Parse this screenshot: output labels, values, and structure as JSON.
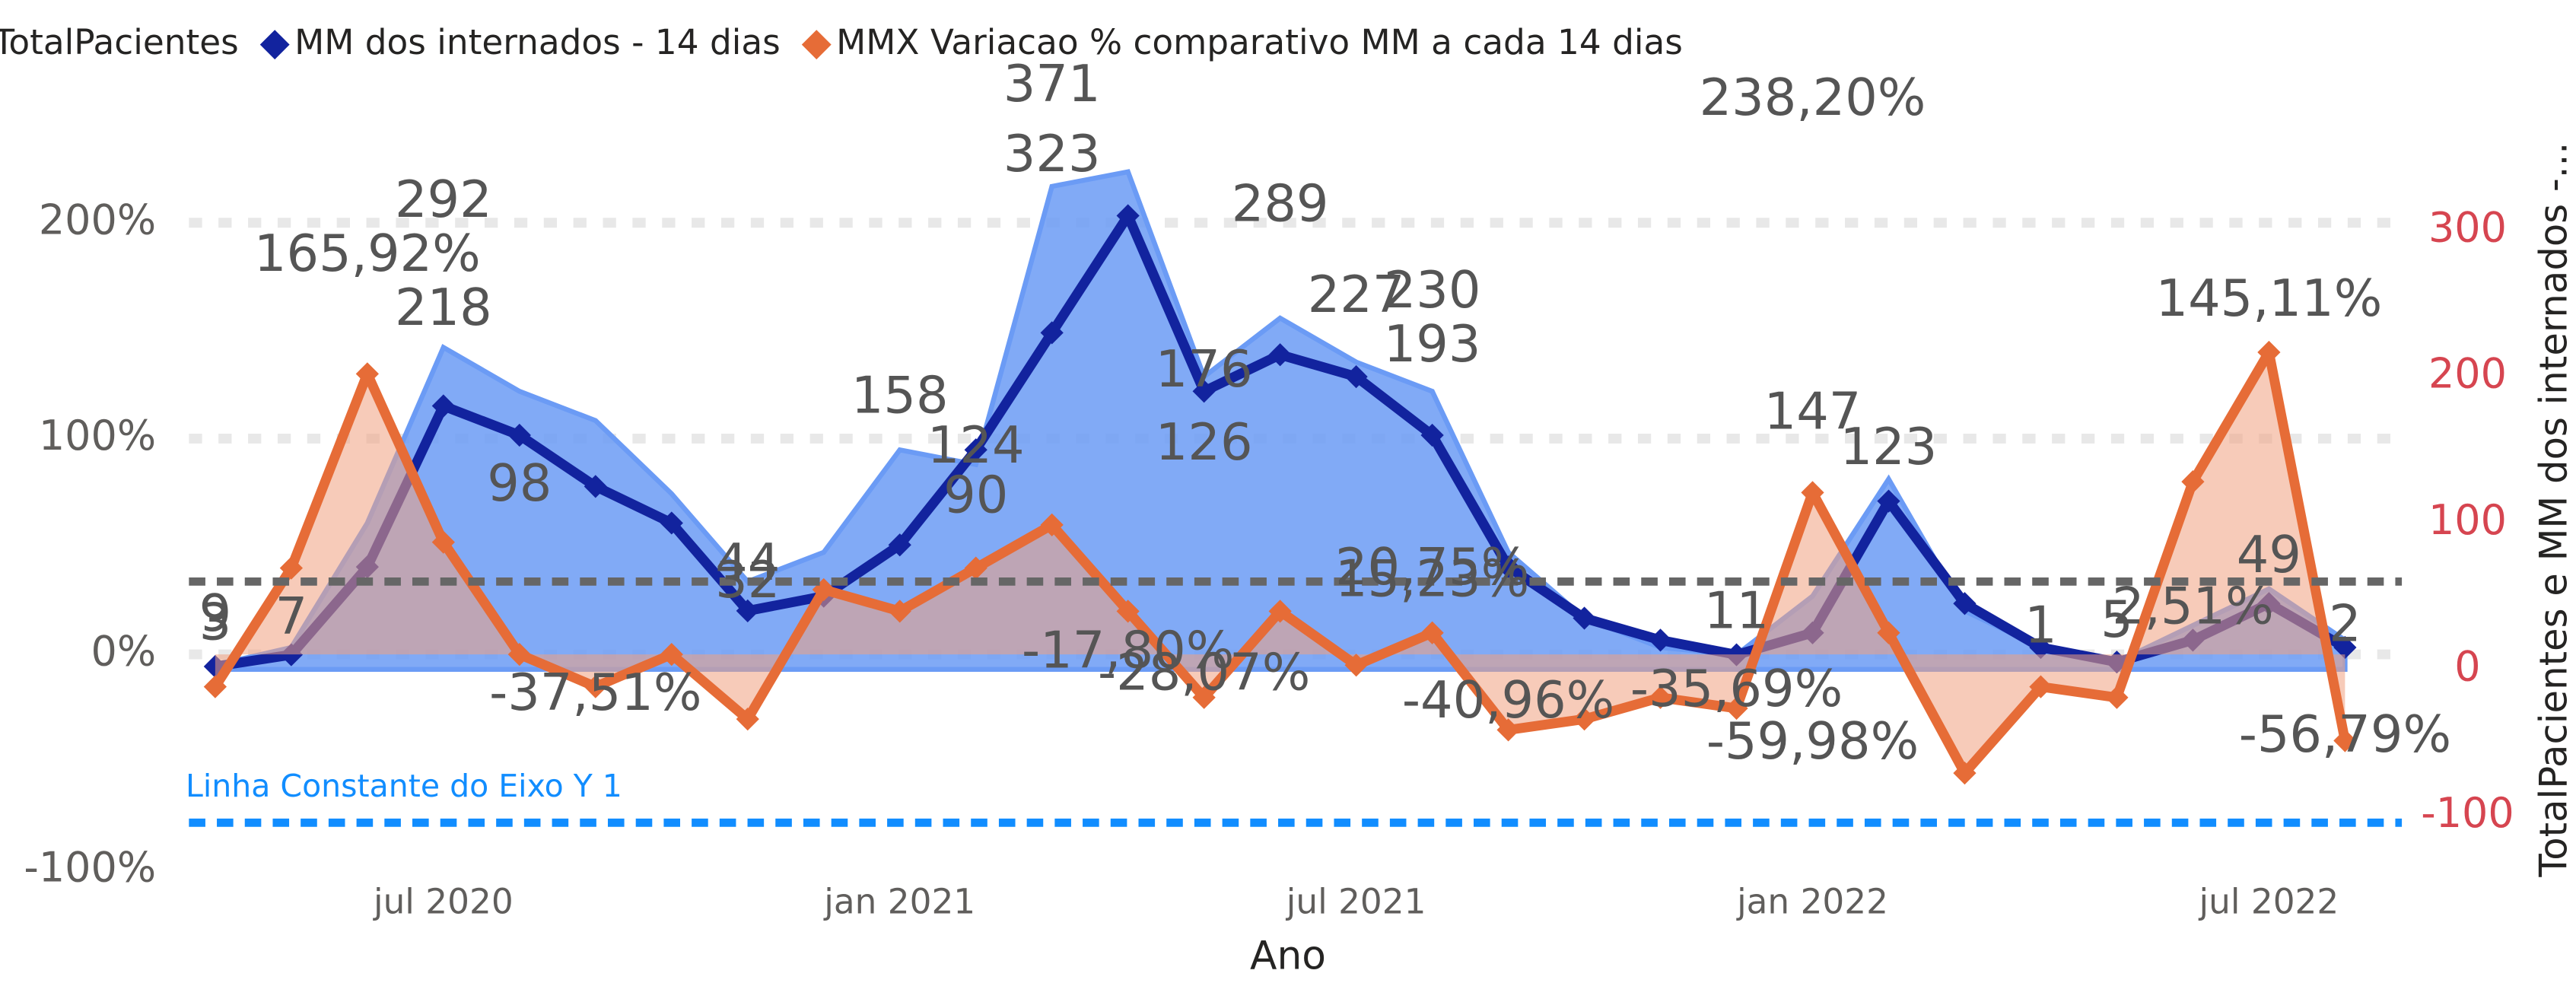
{
  "chart_data": {
    "type": "combo",
    "legend": "top-left",
    "x": [
      "2020-04",
      "2020-05",
      "2020-06",
      "2020-07",
      "2020-08",
      "2020-09",
      "2020-10",
      "2020-11",
      "2020-12",
      "2021-01",
      "2021-02",
      "2021-03",
      "2021-04",
      "2021-05",
      "2021-06",
      "2021-07",
      "2021-08",
      "2021-09",
      "2021-10",
      "2021-11",
      "2021-12",
      "2022-01",
      "2022-02",
      "2022-03",
      "2022-04",
      "2022-05",
      "2022-06",
      "2022-07",
      "2022-08"
    ],
    "series": [
      {
        "name": "TotalPacientes",
        "color": "#6b9bf5",
        "kind": "area",
        "axis": "y2",
        "values": [
          3,
          15,
          100,
          220,
          190,
          170,
          120,
          60,
          80,
          150,
          140,
          330,
          340,
          200,
          240,
          210,
          190,
          80,
          35,
          15,
          10,
          50,
          130,
          40,
          15,
          5,
          30,
          55,
          20
        ]
      },
      {
        "name": "MM dos internados - 14 dias",
        "color": "#12239e",
        "kind": "line",
        "axis": "y2",
        "values": [
          2,
          10,
          70,
          180,
          160,
          125,
          100,
          40,
          50,
          85,
          150,
          230,
          310,
          190,
          215,
          200,
          160,
          70,
          35,
          20,
          10,
          25,
          115,
          45,
          15,
          5,
          20,
          45,
          15
        ]
      },
      {
        "name": "MMX Variacao % comparativo MM a cada 14 dias",
        "color": "#e66c37",
        "kind": "line-area",
        "axis": "y",
        "values": [
          -15,
          40,
          130,
          52,
          0,
          -15,
          0,
          -30,
          30,
          20,
          40,
          60,
          20,
          -20,
          20,
          -5,
          10,
          -35,
          -30,
          -20,
          -25,
          75,
          10,
          -55,
          -15,
          -20,
          80,
          140,
          -40
        ]
      }
    ],
    "ylim": [
      -108,
      246
    ],
    "yticks": [
      {
        "value": -100,
        "label": "-100%"
      },
      {
        "value": 0,
        "label": "0%"
      },
      {
        "value": 100,
        "label": "100%"
      },
      {
        "value": 200,
        "label": "200%"
      }
    ],
    "y2lim": [
      -149,
      373
    ],
    "y2ticks": [
      -100,
      0,
      100,
      200,
      300
    ],
    "xticks": [
      {
        "value": "2020-07",
        "label": "jul 2020"
      },
      {
        "value": "2021-01",
        "label": "jan 2021"
      },
      {
        "value": "2021-07",
        "label": "jul 2021"
      },
      {
        "value": "2022-01",
        "label": "jan 2022"
      },
      {
        "value": "2022-07",
        "label": "jul 2022"
      }
    ],
    "xlabel": "Ano",
    "y2label": "TotalPacientes e MM dos internados -...",
    "grid": true,
    "reference_lines": [
      {
        "label": "Linha Constante do Eixo Y 1",
        "value": -78,
        "axis": "y",
        "color": "#118dff"
      },
      {
        "value": 60,
        "axis": "y2",
        "color": "#666666"
      }
    ],
    "annotations": [
      {
        "text": "3",
        "x": "2020-04",
        "value": 3,
        "axis": "y2"
      },
      {
        "text": "9",
        "x": "2020-04",
        "value": 9,
        "axis": "y2"
      },
      {
        "text": "7",
        "x": "2020-05",
        "value": 7,
        "axis": "y2"
      },
      {
        "text": "165,92%",
        "x": "2020-06",
        "value": 165.92,
        "axis": "y"
      },
      {
        "text": "292",
        "x": "2020-07",
        "value": 292,
        "axis": "y2"
      },
      {
        "text": "218",
        "x": "2020-07",
        "value": 218,
        "axis": "y2"
      },
      {
        "text": "98",
        "x": "2020-08",
        "value": 98,
        "axis": "y2"
      },
      {
        "text": "-37,51%",
        "x": "2020-09",
        "value": -37.51,
        "axis": "y"
      },
      {
        "text": "44",
        "x": "2020-11",
        "value": 44,
        "axis": "y2"
      },
      {
        "text": "32",
        "x": "2020-11",
        "value": 32,
        "axis": "y2"
      },
      {
        "text": "158",
        "x": "2021-01",
        "value": 158,
        "axis": "y2"
      },
      {
        "text": "124",
        "x": "2021-02",
        "value": 124,
        "axis": "y2"
      },
      {
        "text": "90",
        "x": "2021-02",
        "value": 90,
        "axis": "y2"
      },
      {
        "text": "371",
        "x": "2021-03",
        "value": 371,
        "axis": "y2"
      },
      {
        "text": "323",
        "x": "2021-03",
        "value": 323,
        "axis": "y2"
      },
      {
        "text": "-17,80%",
        "x": "2021-04",
        "value": -17.8,
        "axis": "y"
      },
      {
        "text": "176",
        "x": "2021-05",
        "value": 176,
        "axis": "y2"
      },
      {
        "text": "126",
        "x": "2021-05",
        "value": 126,
        "axis": "y2"
      },
      {
        "text": "-28,07%",
        "x": "2021-05",
        "value": -28.07,
        "axis": "y"
      },
      {
        "text": "289",
        "x": "2021-06",
        "value": 289,
        "axis": "y2"
      },
      {
        "text": "227",
        "x": "2021-07",
        "value": 227,
        "axis": "y2"
      },
      {
        "text": "230",
        "x": "2021-08",
        "value": 230,
        "axis": "y2"
      },
      {
        "text": "193",
        "x": "2021-08",
        "value": 193,
        "axis": "y2"
      },
      {
        "text": "20,75%",
        "x": "2021-08",
        "value": 20.75,
        "axis": "y"
      },
      {
        "text": "15,23%",
        "x": "2021-08",
        "value": 15.23,
        "axis": "y"
      },
      {
        "text": "-40,96%",
        "x": "2021-09",
        "value": -40.96,
        "axis": "y"
      },
      {
        "text": "-35,69%",
        "x": "2021-12",
        "value": -35.69,
        "axis": "y"
      },
      {
        "text": "11",
        "x": "2021-12",
        "value": 11,
        "axis": "y2"
      },
      {
        "text": "238,20%",
        "x": "2022-01",
        "value": 238.2,
        "axis": "y"
      },
      {
        "text": "147",
        "x": "2022-01",
        "value": 147,
        "axis": "y2"
      },
      {
        "text": "-59,98%",
        "x": "2022-01",
        "value": -59.98,
        "axis": "y"
      },
      {
        "text": "123",
        "x": "2022-02",
        "value": 123,
        "axis": "y2"
      },
      {
        "text": "1",
        "x": "2022-04",
        "value": 1,
        "axis": "y2"
      },
      {
        "text": "5",
        "x": "2022-05",
        "value": 5,
        "axis": "y2"
      },
      {
        "text": "2,51%",
        "x": "2022-06",
        "value": 2.51,
        "axis": "y"
      },
      {
        "text": "145,11%",
        "x": "2022-07",
        "value": 145.11,
        "axis": "y"
      },
      {
        "text": "49",
        "x": "2022-07",
        "value": 49,
        "axis": "y2"
      },
      {
        "text": "2",
        "x": "2022-08",
        "value": 2,
        "axis": "y2"
      },
      {
        "text": "-56,79%",
        "x": "2022-08",
        "value": -56.79,
        "axis": "y"
      }
    ]
  }
}
